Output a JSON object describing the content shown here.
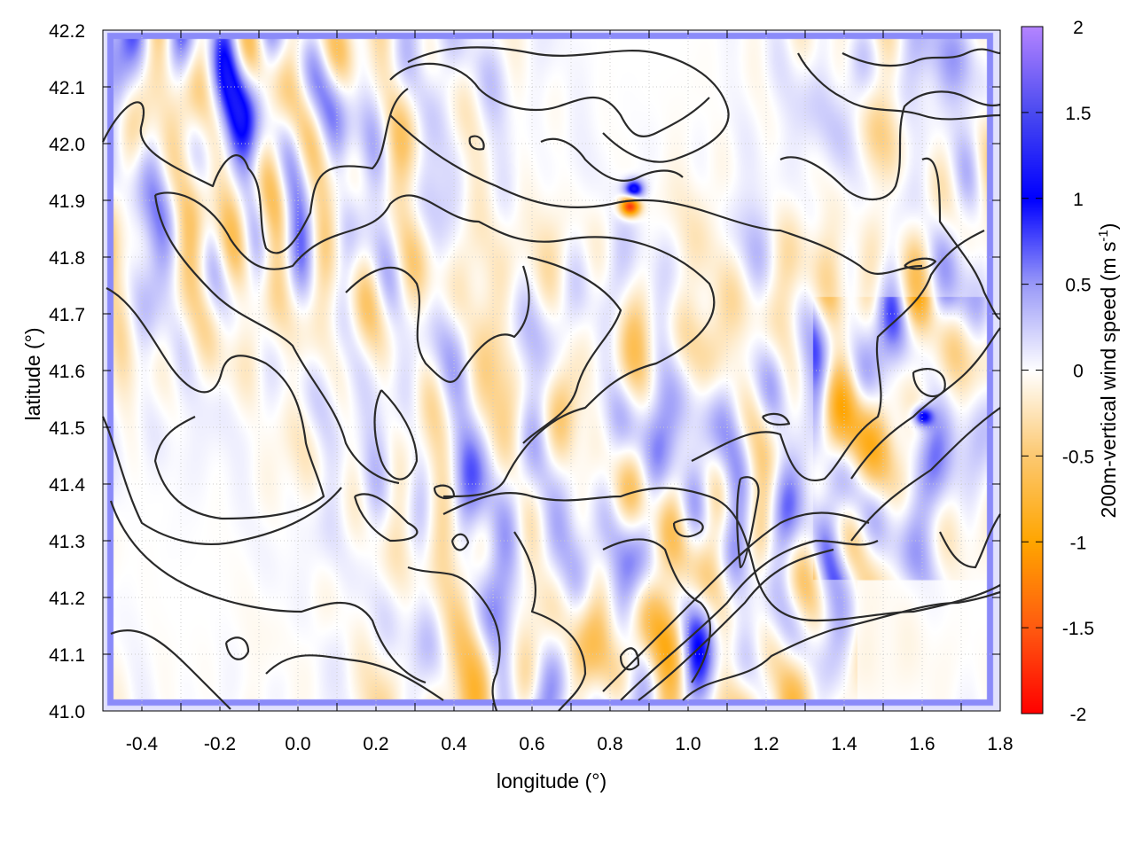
{
  "chart_data": {
    "type": "heatmap",
    "title": "",
    "xlabel": "longitude (°)",
    "ylabel": "latitude (°)",
    "xlim": [
      -0.5,
      1.8
    ],
    "ylim": [
      41.0,
      42.2
    ],
    "xticks": [
      "-0.4",
      "-0.2",
      "0.0",
      "0.2",
      "0.4",
      "0.6",
      "0.8",
      "1.0",
      "1.2",
      "1.4",
      "1.6",
      "1.8"
    ],
    "xtick_values": [
      -0.4,
      -0.2,
      0.0,
      0.2,
      0.4,
      0.6,
      0.8,
      1.0,
      1.2,
      1.4,
      1.6,
      1.8
    ],
    "yticks": [
      "41.0",
      "41.1",
      "41.2",
      "41.3",
      "41.4",
      "41.5",
      "41.6",
      "41.7",
      "41.8",
      "41.9",
      "42.0",
      "42.1",
      "42.2"
    ],
    "ytick_values": [
      41.0,
      41.1,
      41.2,
      41.3,
      41.4,
      41.5,
      41.6,
      41.7,
      41.8,
      41.9,
      42.0,
      42.1,
      42.2
    ],
    "grid": true,
    "overlay": "black terrain contour lines",
    "colorbar": {
      "label_main": "200m-vertical wind speed (m s",
      "label_sup": "-1",
      "label_end": ")",
      "range": [
        -2,
        2
      ],
      "ticks": [
        "2",
        "1.5",
        "1",
        "0.5",
        "0",
        "-0.5",
        "-1",
        "-1.5",
        "-2"
      ],
      "tick_values": [
        2,
        1.5,
        1,
        0.5,
        0,
        -0.5,
        -1,
        -1.5,
        -2
      ],
      "colormap": [
        {
          "value": -2,
          "color": "#ff0000"
        },
        {
          "value": -1.5,
          "color": "#ff5a10"
        },
        {
          "value": -1,
          "color": "#ffa500"
        },
        {
          "value": -0.5,
          "color": "#fcc870"
        },
        {
          "value": 0,
          "color": "#ffffff"
        },
        {
          "value": 0.5,
          "color": "#9a9af8"
        },
        {
          "value": 1,
          "color": "#0000ff"
        },
        {
          "value": 1.5,
          "color": "#4a4af0"
        },
        {
          "value": 2,
          "color": "#b484ff"
        }
      ]
    },
    "notable_features": [
      {
        "lon": 0.85,
        "lat": 41.89,
        "value": -1.8
      },
      {
        "lon": 0.86,
        "lat": 41.92,
        "value": 1.2
      },
      {
        "lon": 1.6,
        "lat": 41.52,
        "value": 1.0
      }
    ]
  }
}
